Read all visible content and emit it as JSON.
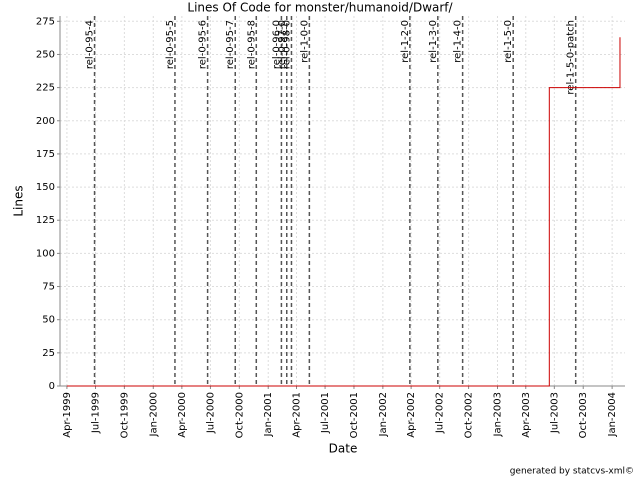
{
  "chart_data": {
    "type": "line",
    "title": "Lines Of Code for monster/humanoid/Dwarf/",
    "x_label": "Date",
    "y_label": "Lines",
    "footer": "generated by statcvs-xml©",
    "x": [
      "1999-04-01",
      "2003-06-15",
      "2003-06-15",
      "2004-01-26",
      "2004-01-26"
    ],
    "values": [
      0,
      0,
      225,
      225,
      263
    ],
    "color": "#cc0000",
    "xlim": [
      "1999-03-10",
      "2004-02-11"
    ],
    "xticks": [
      {
        "value": "1999-04-01",
        "label": "Apr-1999"
      },
      {
        "value": "1999-07-01",
        "label": "Jul-1999"
      },
      {
        "value": "1999-10-01",
        "label": "Oct-1999"
      },
      {
        "value": "2000-01-01",
        "label": "Jan-2000"
      },
      {
        "value": "2000-04-01",
        "label": "Apr-2000"
      },
      {
        "value": "2000-07-01",
        "label": "Jul-2000"
      },
      {
        "value": "2000-10-01",
        "label": "Oct-2000"
      },
      {
        "value": "2001-01-01",
        "label": "Jan-2001"
      },
      {
        "value": "2001-04-01",
        "label": "Apr-2001"
      },
      {
        "value": "2001-07-01",
        "label": "Jul-2001"
      },
      {
        "value": "2001-10-01",
        "label": "Oct-2001"
      },
      {
        "value": "2002-01-01",
        "label": "Jan-2002"
      },
      {
        "value": "2002-04-01",
        "label": "Apr-2002"
      },
      {
        "value": "2002-07-01",
        "label": "Jul-2002"
      },
      {
        "value": "2002-10-01",
        "label": "Oct-2002"
      },
      {
        "value": "2003-01-01",
        "label": "Jan-2003"
      },
      {
        "value": "2003-04-01",
        "label": "Apr-2003"
      },
      {
        "value": "2003-07-01",
        "label": "Jul-2003"
      },
      {
        "value": "2003-10-01",
        "label": "Oct-2003"
      },
      {
        "value": "2004-01-01",
        "label": "Jan-2004"
      }
    ],
    "ylim": [
      0,
      279
    ],
    "yticks": [
      0,
      25,
      50,
      75,
      100,
      125,
      150,
      175,
      200,
      225,
      250,
      275
    ],
    "grid": true,
    "markers": [
      {
        "label": "rel-0-95-4",
        "x": "1999-06-28"
      },
      {
        "label": "rel-0-95-5",
        "x": "2000-03-10"
      },
      {
        "label": "rel-0-95-6",
        "x": "2000-06-22"
      },
      {
        "label": "rel-0-95-7",
        "x": "2000-09-18"
      },
      {
        "label": "rel-0-95-8",
        "x": "2000-11-24"
      },
      {
        "label": "rel-0-96-0",
        "x": "2001-02-12"
      },
      {
        "label": "rel-0-97-0",
        "x": "2001-03-01"
      },
      {
        "label": "rel-0-98-0",
        "x": "2001-03-16"
      },
      {
        "label": "rel-1-0-0",
        "x": "2001-05-12"
      },
      {
        "label": "rel-1-2-0",
        "x": "2002-03-28"
      },
      {
        "label": "rel-1-3-0",
        "x": "2002-06-25"
      },
      {
        "label": "rel-1-4-0",
        "x": "2002-09-12"
      },
      {
        "label": "rel-1-5-0",
        "x": "2003-02-20"
      },
      {
        "label": "rel-1-5-0-patch",
        "x": "2003-09-07"
      }
    ],
    "marker_color": "#555555"
  }
}
